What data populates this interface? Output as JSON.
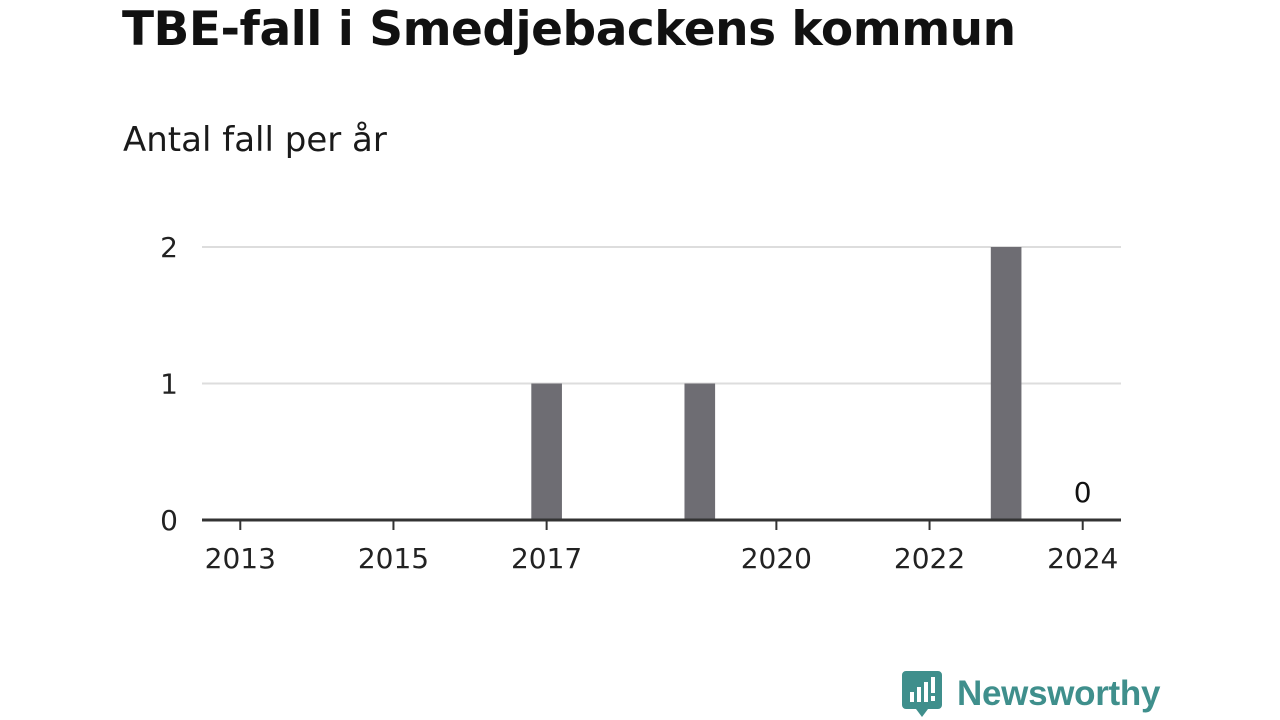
{
  "title": "TBE-fall i Smedjebackens kommun",
  "subtitle": "Antal fall per år",
  "chart_data": {
    "type": "bar",
    "title": "TBE-fall i Smedjebackens kommun",
    "subtitle": "Antal fall per år",
    "x": [
      2013,
      2014,
      2015,
      2016,
      2017,
      2018,
      2019,
      2020,
      2021,
      2022,
      2023,
      2024
    ],
    "values": [
      0,
      0,
      0,
      0,
      1,
      0,
      1,
      0,
      0,
      0,
      2,
      0
    ],
    "x_tick_labels": [
      "2013",
      "2015",
      "2017",
      "2020",
      "2022",
      "2024"
    ],
    "y_ticks": [
      0,
      1,
      2
    ],
    "ylim": [
      0,
      2
    ],
    "xlim": [
      2012.5,
      2024.5
    ],
    "grid": true,
    "annotations": [
      {
        "x": 2024,
        "text": "0"
      }
    ],
    "bar_color": "#6e6d73",
    "grid_color": "#dddddd",
    "axis_color": "#333333"
  },
  "brand": {
    "name": "Newsworthy",
    "color": "#3f8f8c",
    "icon": "newsworthy-logo-icon"
  }
}
